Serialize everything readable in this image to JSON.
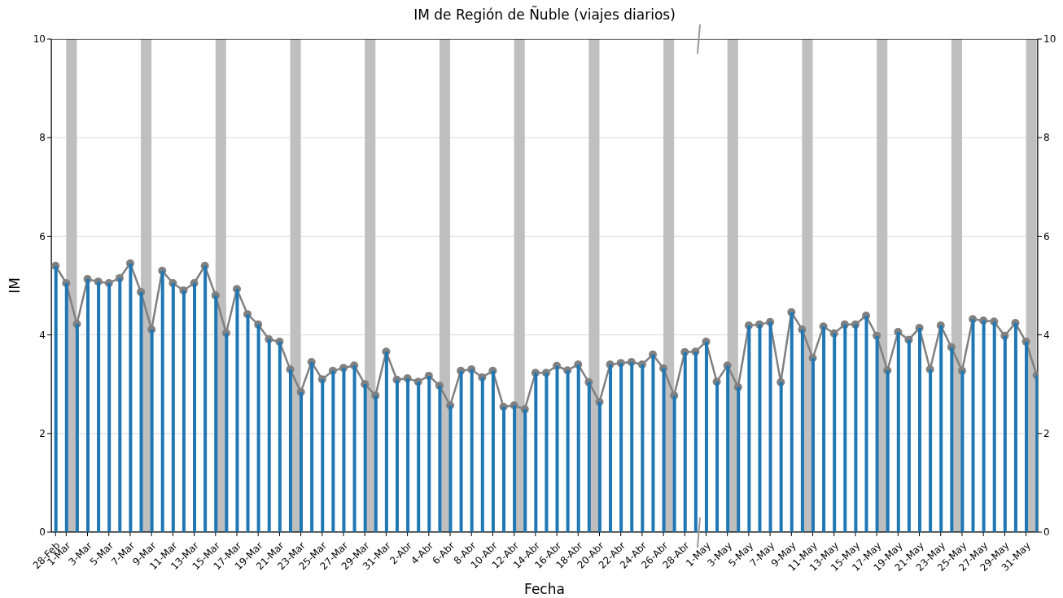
{
  "chart_data": {
    "type": "bar",
    "title": "IM de Región de Ñuble (viajes diarios)",
    "xlabel": "Fecha",
    "ylabel": "IM",
    "categories": [
      "28-Feb",
      "1-Mar",
      null,
      "3-Mar",
      null,
      "5-Mar",
      null,
      "7-Mar",
      null,
      "9-Mar",
      null,
      "11-Mar",
      null,
      "13-Mar",
      null,
      "15-Mar",
      null,
      "17-Mar",
      null,
      "19-Mar",
      null,
      "21-Mar",
      null,
      "23-Mar",
      null,
      "25-Mar",
      null,
      "27-Mar",
      null,
      "29-Mar",
      null,
      "31-Mar",
      null,
      "2-Abr",
      null,
      "4-Abr",
      null,
      "6-Abr",
      null,
      "8-Abr",
      null,
      "10-Abr",
      null,
      "12-Abr",
      null,
      "14-Abr",
      null,
      "16-Abr",
      null,
      "18-Abr",
      null,
      "20-Abr",
      null,
      "22-Abr",
      null,
      "24-Abr",
      null,
      "26-Abr",
      null,
      "28-Abr",
      null,
      "1-May",
      null,
      "3-May",
      null,
      "5-May",
      null,
      "7-May",
      null,
      "9-May",
      null,
      "11-May",
      null,
      "13-May",
      null,
      "15-May",
      null,
      "17-May",
      null,
      "19-May",
      null,
      "21-May",
      null,
      "23-May",
      null,
      "25-May",
      null,
      "27-May",
      null,
      "29-May",
      null,
      "31-May",
      null
    ],
    "series": [
      {
        "color": "#1f77b4",
        "values": [
          5.4,
          5.05,
          4.22,
          5.13,
          5.08,
          5.05,
          5.15,
          5.45,
          4.87,
          4.11,
          5.3,
          5.05,
          4.9,
          5.05,
          5.4,
          4.8,
          4.04,
          4.93,
          4.42,
          4.21,
          3.91,
          3.86,
          3.3,
          2.84,
          3.45,
          3.1,
          3.27,
          3.33,
          3.38,
          3.0,
          2.77,
          3.66,
          3.09,
          3.12,
          3.05,
          3.17,
          2.97,
          2.57,
          3.27,
          3.3,
          3.14,
          3.27,
          2.54,
          2.57,
          2.49,
          3.23,
          3.23,
          3.37,
          3.28,
          3.4,
          3.04,
          2.64,
          3.4,
          3.43,
          3.45,
          3.4,
          3.6,
          3.32,
          2.77,
          3.65,
          3.66,
          3.86,
          3.05,
          3.38,
          2.94,
          4.19,
          4.21,
          4.26,
          3.04,
          4.46,
          4.11,
          3.53,
          4.17,
          4.03,
          4.21,
          4.21,
          4.39,
          3.98,
          3.28,
          4.06,
          3.9,
          4.14,
          3.3,
          4.19,
          3.75,
          3.27,
          4.32,
          4.29,
          4.27,
          3.98,
          4.24,
          3.86,
          3.18
        ]
      },
      {
        "type": "line",
        "color": "#808080",
        "marker": "circle",
        "values": [
          5.4,
          5.05,
          4.22,
          5.13,
          5.08,
          5.05,
          5.15,
          5.45,
          4.87,
          4.11,
          5.3,
          5.05,
          4.9,
          5.05,
          5.4,
          4.8,
          4.04,
          4.93,
          4.42,
          4.21,
          3.91,
          3.86,
          3.3,
          2.84,
          3.45,
          3.1,
          3.27,
          3.33,
          3.38,
          3.0,
          2.77,
          3.66,
          3.09,
          3.12,
          3.05,
          3.17,
          2.97,
          2.57,
          3.27,
          3.3,
          3.14,
          3.27,
          2.54,
          2.57,
          2.49,
          3.23,
          3.23,
          3.37,
          3.28,
          3.4,
          3.04,
          2.64,
          3.4,
          3.43,
          3.45,
          3.4,
          3.6,
          3.32,
          2.77,
          3.65,
          3.66,
          3.86,
          3.05,
          3.38,
          2.94,
          4.19,
          4.21,
          4.26,
          3.04,
          4.46,
          4.11,
          3.53,
          4.17,
          4.03,
          4.21,
          4.21,
          4.39,
          3.98,
          3.28,
          4.06,
          3.9,
          4.14,
          3.3,
          4.19,
          3.75,
          3.27,
          4.32,
          4.29,
          4.27,
          3.98,
          4.24,
          3.86,
          3.18
        ]
      }
    ],
    "ylim": [
      0,
      10
    ],
    "yticks": [
      0,
      2,
      4,
      6,
      8,
      10
    ],
    "y2lim": [
      0,
      10
    ],
    "y2ticks": [
      0,
      2,
      4,
      6,
      8,
      10
    ],
    "grid": "y"
  }
}
